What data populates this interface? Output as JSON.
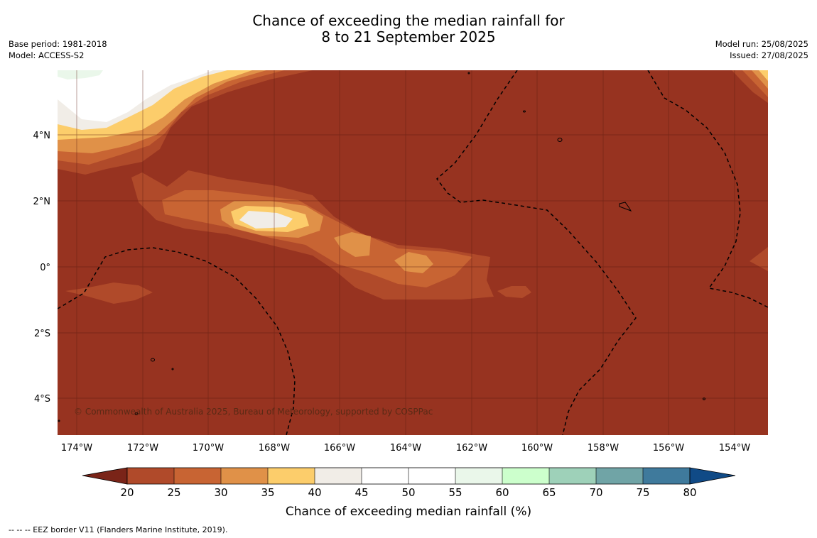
{
  "title": {
    "line1": "Chance of exceeding the median rainfall for",
    "line2": "8 to 21 September 2025"
  },
  "meta": {
    "base_period": "Base period: 1981-2018",
    "model": "Model: ACCESS-S2",
    "model_run": "Model run: 25/08/2025",
    "issued": "Issued: 27/08/2025"
  },
  "map": {
    "x_ticks": [
      "174°W",
      "172°W",
      "170°W",
      "168°W",
      "166°W",
      "164°W",
      "162°W",
      "160°W",
      "158°W",
      "156°W",
      "154°W"
    ],
    "y_ticks": [
      "4°N",
      "2°N",
      "0°",
      "2°S",
      "4°S"
    ],
    "copyright": "© Commonwealth of Australia 2025, Bureau of Meteorology, supported by COSPPac",
    "colors": {
      "lt20": "#973320",
      "20_25": "#b04a2a",
      "25_30": "#c86433",
      "30_35": "#e09148",
      "35_40": "#fccd6b",
      "40_45": "#f1ede7",
      "45_55": "#ffffff",
      "55_60": "#eaf7ea",
      "60_65": "#ccffcc",
      "65_70": "#9ed1b9",
      "70_75": "#70a4a6",
      "75_80": "#3f7a9c",
      "gt80": "#104a86"
    }
  },
  "colorbar": {
    "labels": [
      "20",
      "25",
      "30",
      "35",
      "40",
      "45",
      "50",
      "55",
      "60",
      "65",
      "70",
      "75",
      "80"
    ],
    "title": "Chance of exceeding median rainfall (%)"
  },
  "footnote": "--  --  -- EEZ border V11 (Flanders Marine Institute, 2019)."
}
